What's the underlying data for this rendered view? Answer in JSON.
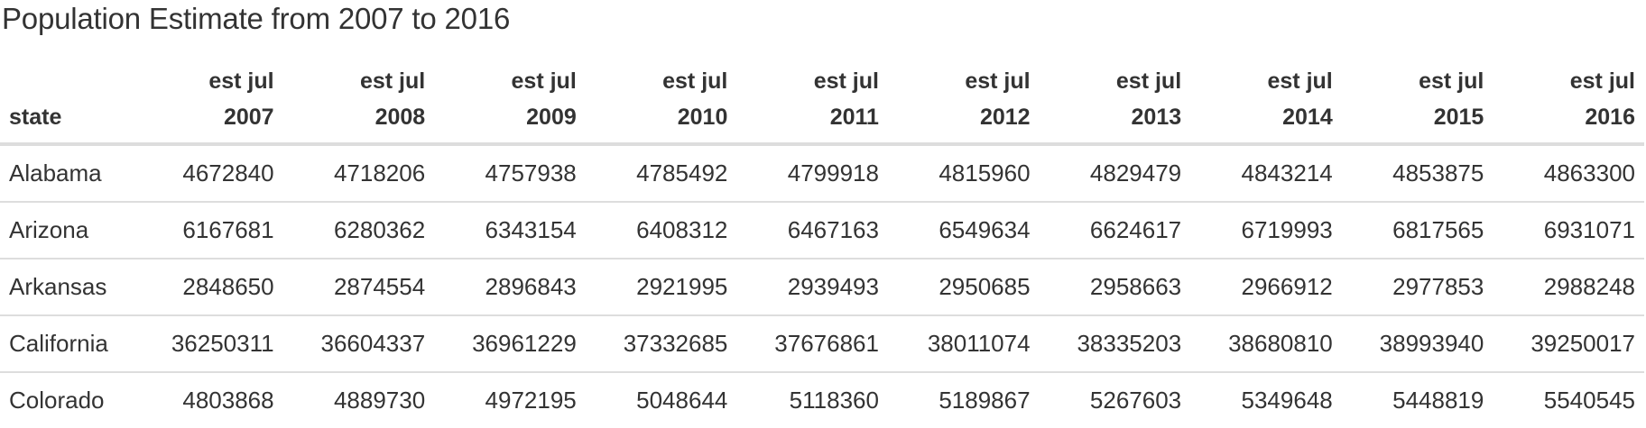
{
  "title": "Population Estimate from 2007 to 2016",
  "table": {
    "headers": [
      {
        "top": "",
        "bottom": "state"
      },
      {
        "top": "est jul",
        "bottom": "2007"
      },
      {
        "top": "est jul",
        "bottom": "2008"
      },
      {
        "top": "est jul",
        "bottom": "2009"
      },
      {
        "top": "est jul",
        "bottom": "2010"
      },
      {
        "top": "est jul",
        "bottom": "2011"
      },
      {
        "top": "est jul",
        "bottom": "2012"
      },
      {
        "top": "est jul",
        "bottom": "2013"
      },
      {
        "top": "est jul",
        "bottom": "2014"
      },
      {
        "top": "est jul",
        "bottom": "2015"
      },
      {
        "top": "est jul",
        "bottom": "2016"
      }
    ],
    "rows": [
      [
        "Alabama",
        "4672840",
        "4718206",
        "4757938",
        "4785492",
        "4799918",
        "4815960",
        "4829479",
        "4843214",
        "4853875",
        "4863300"
      ],
      [
        "Arizona",
        "6167681",
        "6280362",
        "6343154",
        "6408312",
        "6467163",
        "6549634",
        "6624617",
        "6719993",
        "6817565",
        "6931071"
      ],
      [
        "Arkansas",
        "2848650",
        "2874554",
        "2896843",
        "2921995",
        "2939493",
        "2950685",
        "2958663",
        "2966912",
        "2977853",
        "2988248"
      ],
      [
        "California",
        "36250311",
        "36604337",
        "36961229",
        "37332685",
        "37676861",
        "38011074",
        "38335203",
        "38680810",
        "38993940",
        "39250017"
      ],
      [
        "Colorado",
        "4803868",
        "4889730",
        "4972195",
        "5048644",
        "5118360",
        "5189867",
        "5267603",
        "5349648",
        "5448819",
        "5540545"
      ]
    ]
  }
}
